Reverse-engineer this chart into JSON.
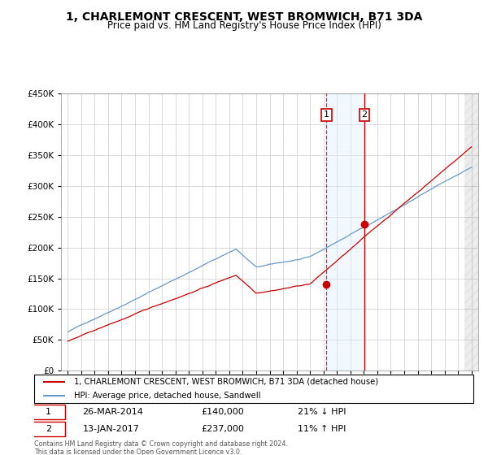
{
  "title": "1, CHARLEMONT CRESCENT, WEST BROMWICH, B71 3DA",
  "subtitle": "Price paid vs. HM Land Registry's House Price Index (HPI)",
  "footer": "Contains HM Land Registry data © Crown copyright and database right 2024.\nThis data is licensed under the Open Government Licence v3.0.",
  "legend_line1": "1, CHARLEMONT CRESCENT, WEST BROMWICH, B71 3DA (detached house)",
  "legend_line2": "HPI: Average price, detached house, Sandwell",
  "transaction1_date": "26-MAR-2014",
  "transaction1_price": "£140,000",
  "transaction1_hpi": "21% ↓ HPI",
  "transaction1_year": 2014.23,
  "transaction1_value": 140000,
  "transaction2_date": "13-JAN-2017",
  "transaction2_price": "£237,000",
  "transaction2_hpi": "11% ↑ HPI",
  "transaction2_year": 2017.04,
  "transaction2_value": 237000,
  "red_color": "#cc0000",
  "blue_color": "#6699cc",
  "shade_color": "#ddeeff",
  "grid_color": "#cccccc",
  "hatch_color": "#cccccc",
  "ylim": [
    0,
    450000
  ],
  "yticks": [
    0,
    50000,
    100000,
    150000,
    200000,
    250000,
    300000,
    350000,
    400000,
    450000
  ],
  "xlim_start": 1994.5,
  "xlim_end": 2025.5
}
